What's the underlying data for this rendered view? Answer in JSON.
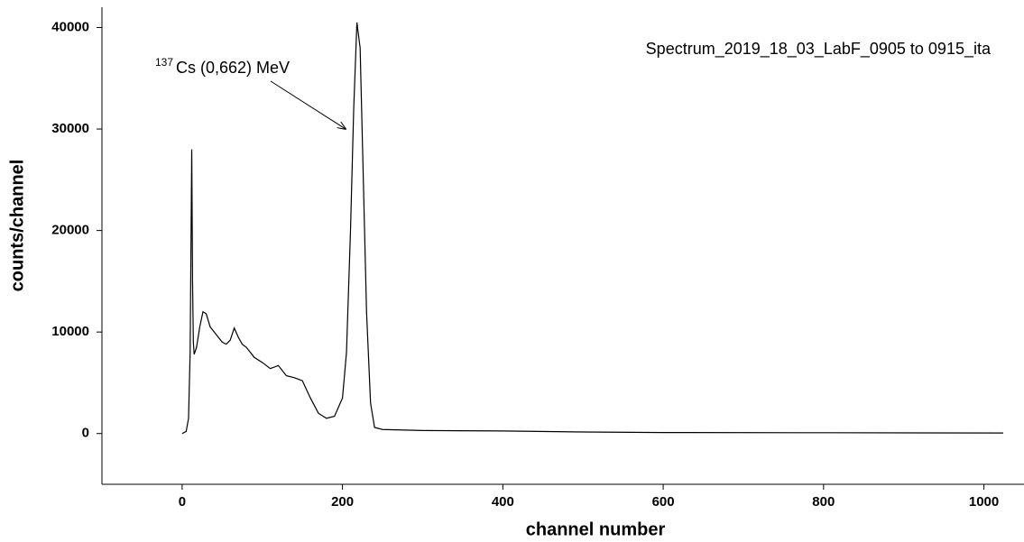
{
  "chart_data": {
    "type": "line",
    "x_label": "channel number",
    "y_label": "counts/channel",
    "xlim": [
      -100,
      1050
    ],
    "ylim": [
      -5000,
      42000
    ],
    "xticks": [
      0,
      200,
      400,
      600,
      800,
      1000
    ],
    "yticks": [
      0,
      10000,
      20000,
      30000,
      40000
    ],
    "annotation": {
      "superscript": "137",
      "text": "Cs (0,662) MeV"
    },
    "series": [
      {
        "name": "Spectrum_2019_18_03_LabF_0905 to 0915_ita",
        "color": "#000000",
        "x": [
          0,
          5,
          8,
          10,
          11,
          12,
          13,
          14,
          15,
          18,
          22,
          26,
          30,
          35,
          40,
          45,
          50,
          55,
          60,
          65,
          70,
          75,
          80,
          90,
          100,
          110,
          120,
          130,
          140,
          150,
          160,
          170,
          180,
          190,
          200,
          205,
          210,
          214,
          218,
          222,
          226,
          230,
          235,
          240,
          250,
          300,
          400,
          500,
          600,
          800,
          1024
        ],
        "values": [
          0,
          200,
          1500,
          8000,
          18000,
          28000,
          15000,
          9000,
          7800,
          8500,
          10500,
          12000,
          11800,
          10500,
          10000,
          9500,
          9000,
          8800,
          9200,
          10400,
          9500,
          8800,
          8500,
          7500,
          7000,
          6400,
          6700,
          5700,
          5500,
          5200,
          3500,
          2000,
          1500,
          1700,
          3500,
          8000,
          20000,
          32000,
          40500,
          38000,
          25000,
          12000,
          3000,
          600,
          400,
          300,
          250,
          150,
          100,
          80,
          50
        ]
      }
    ]
  }
}
